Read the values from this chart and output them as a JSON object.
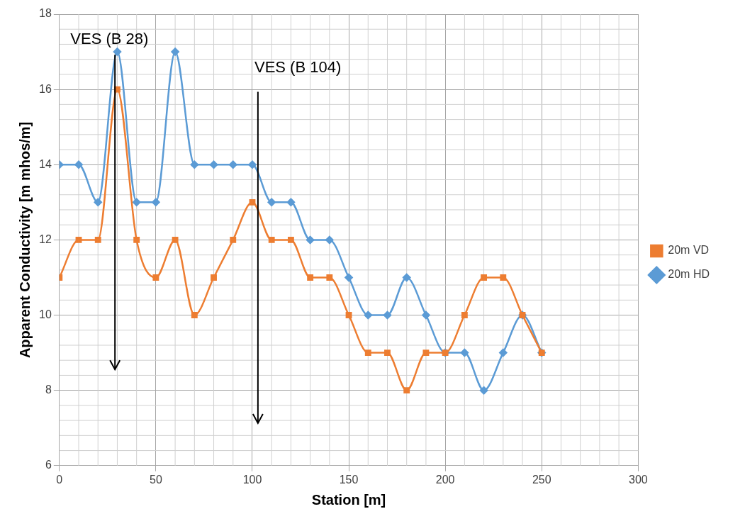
{
  "chart_data": {
    "type": "line",
    "xlabel": "Station [m]",
    "ylabel": "Apparent Conductivity [m mhos/m]",
    "x": [
      0,
      10,
      20,
      30,
      40,
      50,
      60,
      70,
      80,
      90,
      100,
      110,
      120,
      130,
      140,
      150,
      160,
      170,
      180,
      190,
      200,
      210,
      220,
      230,
      240,
      250
    ],
    "series": [
      {
        "name": "20m HD",
        "color": "#5b9bd5",
        "marker": "diamond",
        "values": [
          14,
          14,
          13,
          17,
          13,
          13,
          17,
          14,
          14,
          14,
          14,
          13,
          13,
          12,
          12,
          11,
          10,
          10,
          11,
          10,
          9,
          9,
          8,
          9,
          10,
          9
        ]
      },
      {
        "name": "20m VD",
        "color": "#ed7d31",
        "marker": "square",
        "values": [
          11,
          12,
          12,
          16,
          12,
          11,
          12,
          10,
          11,
          12,
          13,
          12,
          12,
          11,
          11,
          10,
          9,
          9,
          8,
          9,
          9,
          10,
          11,
          11,
          10,
          9
        ]
      }
    ],
    "xlim": [
      0,
      300
    ],
    "xticks": [
      0,
      50,
      100,
      150,
      200,
      250,
      300
    ],
    "ylim": [
      6,
      18
    ],
    "yticks": [
      6,
      8,
      10,
      12,
      14,
      16,
      18
    ],
    "grid": true,
    "legend": "right",
    "line_style": "solid",
    "annotations": [
      "VES (B 28)",
      "VES (B 104)"
    ]
  }
}
